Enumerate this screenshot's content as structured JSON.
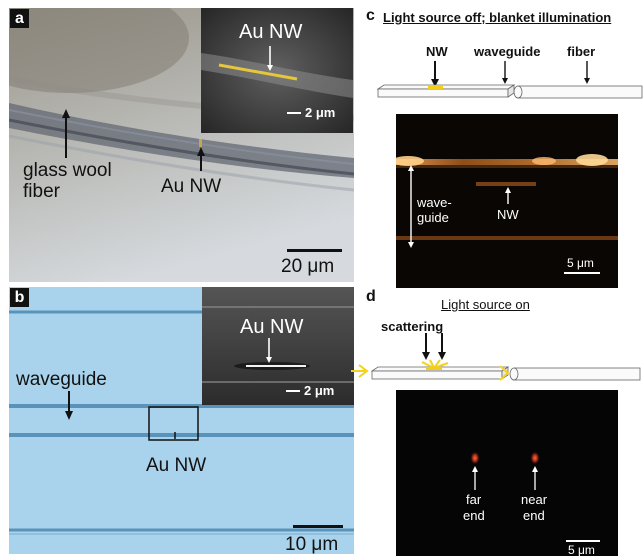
{
  "panel_a": {
    "letter": "a",
    "labels": {
      "fiber_line1": "glass wool",
      "fiber_line2": "fiber",
      "nw": "Au NW"
    },
    "inset": {
      "label": "Au NW",
      "scale": "2 μm"
    },
    "scale": "20 μm"
  },
  "panel_b": {
    "letter": "b",
    "labels": {
      "waveguide": "waveguide",
      "nw": "Au NW"
    },
    "inset": {
      "label": "Au NW",
      "scale": "2 μm"
    },
    "scale": "10 μm",
    "colors": {
      "background": "#a9d3ec",
      "waveguide_line": "#3f7ea8"
    }
  },
  "panel_c": {
    "letter": "c",
    "title": "Light source off; blanket illumination",
    "schematic": {
      "nw": "NW",
      "waveguide": "waveguide",
      "fiber": "fiber"
    },
    "image": {
      "waveguide_line1": "wave-",
      "waveguide_line2": "guide",
      "nw": "NW",
      "scale": "5 μm"
    }
  },
  "panel_d": {
    "letter": "d",
    "title": "Light source on",
    "schematic": {
      "scattering": "scattering"
    },
    "image": {
      "far_line1": "far",
      "far_line2": "end",
      "near_line1": "near",
      "near_line2": "end",
      "scale": "5 μm"
    }
  },
  "colors": {
    "nw_yellow": "#f2cd1c",
    "arrow_yellow": "#f2d21c"
  }
}
